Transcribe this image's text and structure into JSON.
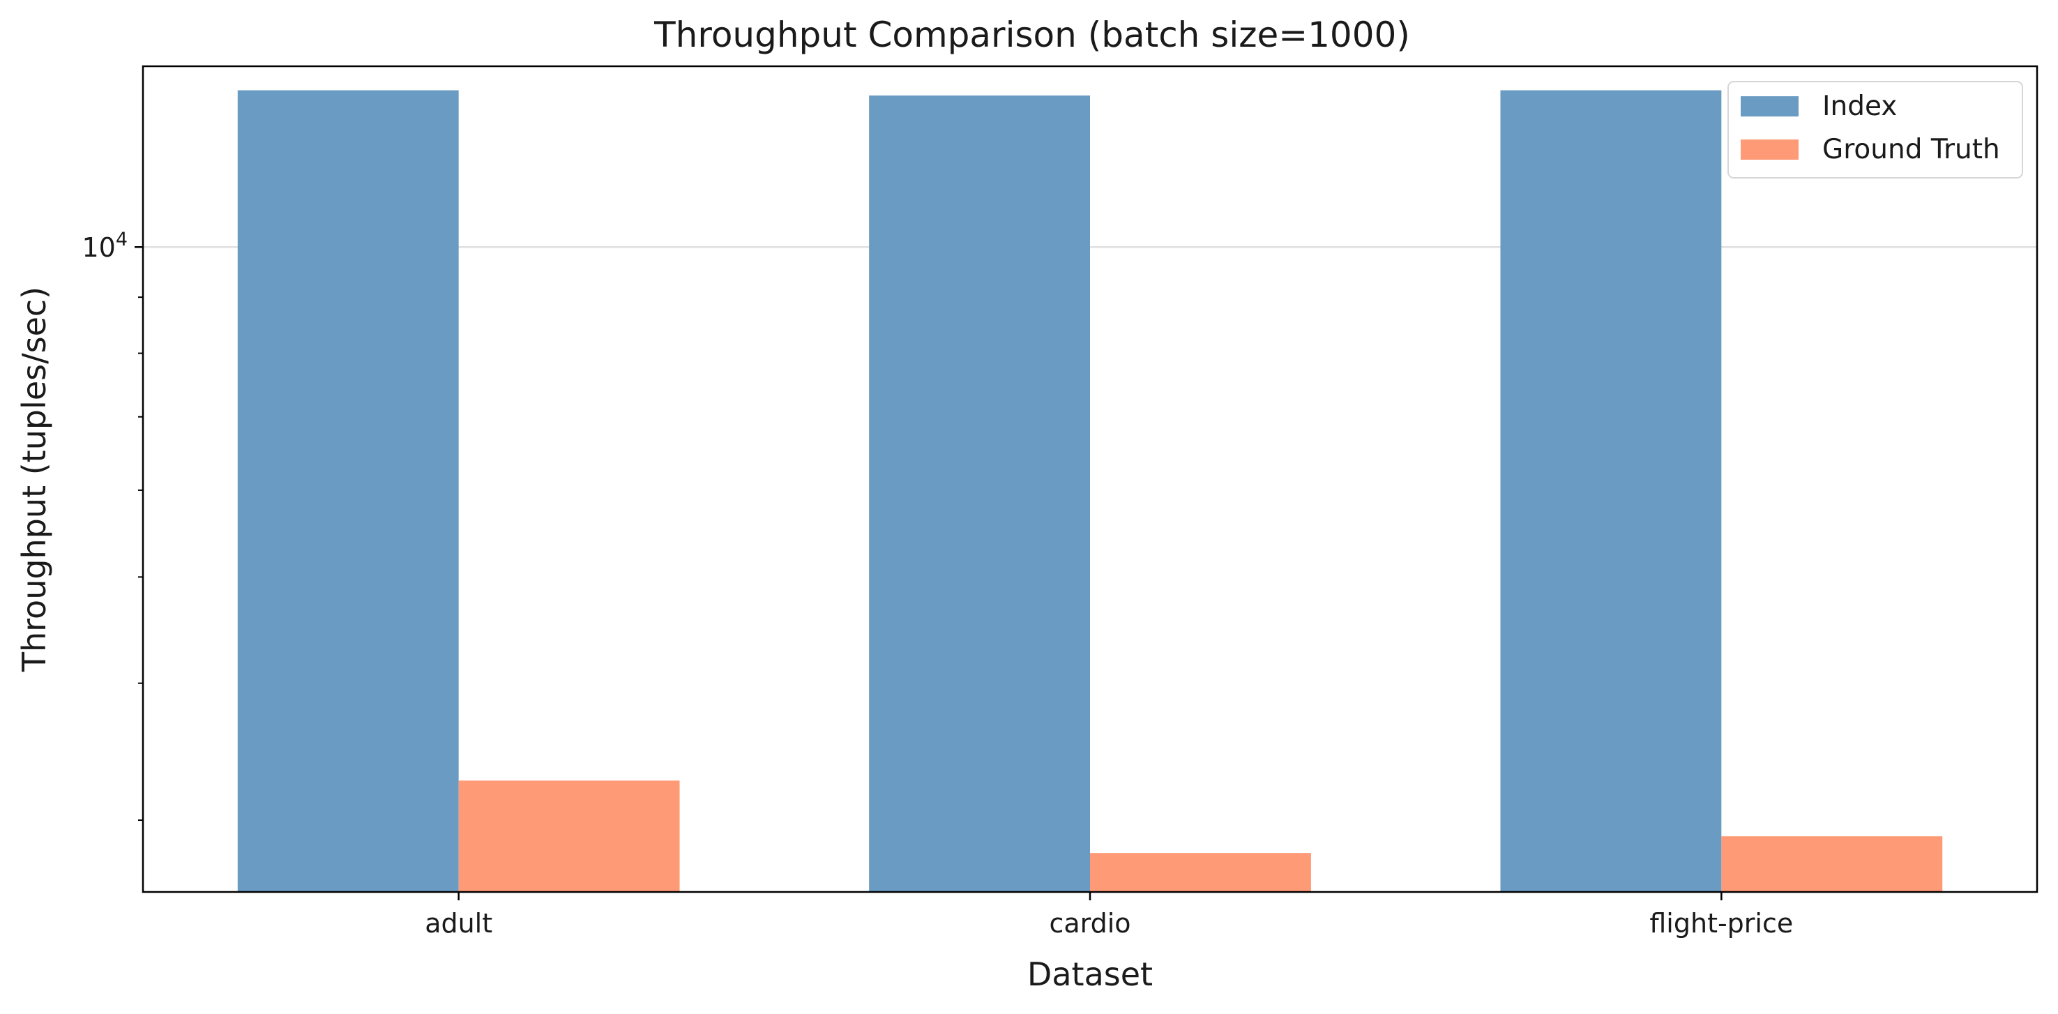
{
  "chart_data": {
    "type": "bar",
    "title": "Throughput Comparison (batch size=1000)",
    "xlabel": "Dataset",
    "ylabel": "Throughput (tuples/sec)",
    "y_scale": "log",
    "ylim": [
      2580,
      14620
    ],
    "y_ticks": [
      {
        "value": 10000,
        "base": "10",
        "exp": "4"
      }
    ],
    "grid": "horizontal, major ticks only",
    "legend_position": "top-right",
    "categories": [
      "adult",
      "cardio",
      "flight-price"
    ],
    "series": [
      {
        "name": "Index",
        "color": "#6a9bc3",
        "values": [
          13900,
          13750,
          13900
        ]
      },
      {
        "name": "Ground Truth",
        "color": "#ff9a76",
        "values": [
          3260,
          2800,
          2900
        ]
      }
    ]
  }
}
